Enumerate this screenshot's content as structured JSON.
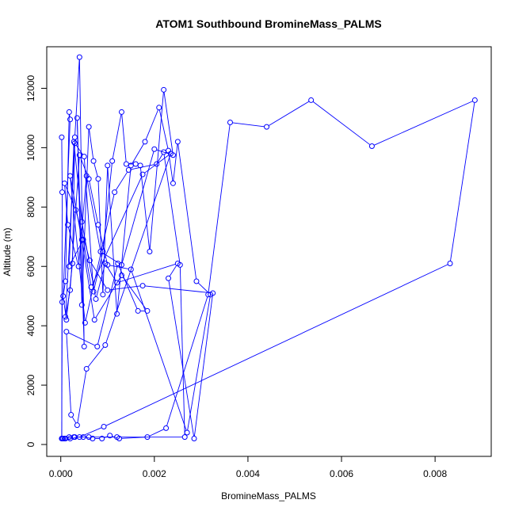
{
  "chart_data": {
    "type": "line",
    "title": "ATOM1 Southbound BromineMass_PALMS",
    "xlabel": "BromineMass_PALMS",
    "ylabel": "Altitude (m)",
    "xlim": [
      -0.0003,
      0.0092
    ],
    "ylim": [
      -400,
      13400
    ],
    "x_ticks": [
      "0.000",
      "0.002",
      "0.004",
      "0.006",
      "0.008"
    ],
    "x_tick_values": [
      0,
      0.002,
      0.004,
      0.006,
      0.008
    ],
    "y_ticks": [
      "0",
      "2000",
      "4000",
      "6000",
      "8000",
      "10000",
      "12000"
    ],
    "y_tick_values": [
      0,
      2000,
      4000,
      6000,
      8000,
      10000,
      12000
    ],
    "grid": false,
    "line_color": "#0000FF",
    "marker": "open-circle",
    "series": [
      {
        "x": [
          2e-05,
          3e-05,
          2e-05,
          3e-05,
          0.0001,
          0.00018,
          0.0002,
          5e-05,
          0.00012,
          0.00025,
          0.0003,
          0.0004,
          0.0005,
          0.00035,
          0.00045,
          0.0006,
          0.0007,
          0.0008,
          0.0009,
          0.001,
          0.0012,
          0.0015,
          0.0018,
          0.0021,
          0.0023,
          0.0024,
          0.0025,
          0.0029,
          0.0032,
          0.0027,
          0.0015,
          0.001,
          0.0008,
          0.0006,
          0.0004,
          0.0002,
          0.0001,
          0.0003,
          0.0005,
          0.0007,
          0.0009,
          0.0011,
          0.0013,
          0.0014,
          0.0016,
          0.0017,
          0.0019,
          0.0022,
          0.0024,
          0.002,
          0.0013,
          0.00085,
          0.00055,
          0.00038,
          0.00015,
          8e-05,
          0.00032,
          0.00062,
          0.001,
          0.00175,
          0.00325,
          0.00285,
          0.0023,
          0.0025,
          0.0012,
          0.00095,
          0.00075,
          0.00045,
          0.00028,
          0.00018,
          0.00048,
          0.00065,
          0.00175,
          0.00235,
          0.00095,
          0.00055,
          0.00035,
          0.00022,
          0.00012,
          0.00078,
          0.00122,
          0.00165,
          0.00185,
          0.0013,
          0.00072,
          0.00045,
          0.0002,
          0.00052,
          0.00115,
          0.00145,
          0.00205,
          0.0022,
          0.00255,
          0.00265,
          0.0012,
          0.0006,
          0.0003,
          0.0001,
          0.00018,
          0.00028,
          0.00048,
          0.00068,
          0.00088,
          0.00105,
          0.00125,
          0.00185,
          0.00225,
          0.00315,
          0.00362,
          0.0044,
          0.00535,
          0.00665,
          0.00885,
          0.00832,
          0.00092,
          0.0004,
          0.0002,
          8e-05,
          5e-05,
          3e-05
        ],
        "y": [
          10350,
          8500,
          200,
          4800,
          5500,
          11200,
          10950,
          5000,
          4200,
          6100,
          10350,
          13050,
          3300,
          11000,
          4700,
          10700,
          9550,
          8950,
          5050,
          9400,
          4400,
          9400,
          10200,
          11350,
          9900,
          8800,
          10200,
          5500,
          5050,
          400,
          5900,
          6050,
          7400,
          8950,
          9750,
          5200,
          4300,
          10150,
          9700,
          5150,
          6500,
          9550,
          11200,
          9450,
          9450,
          9400,
          6500,
          11950,
          9750,
          9950,
          6050,
          6500,
          9050,
          6000,
          7400,
          8800,
          7900,
          6200,
          5200,
          5350,
          5100,
          200,
          5600,
          6100,
          5450,
          6100,
          4900,
          7500,
          10200,
          6000,
          6900,
          5300,
          9100,
          9800,
          3350,
          2550,
          650,
          1000,
          3800,
          3300,
          6100,
          4500,
          4500,
          5700,
          4200,
          6900,
          9050,
          4100,
          8500,
          9250,
          9450,
          9850,
          6050,
          250,
          250,
          250,
          250,
          200,
          250,
          250,
          250,
          200,
          200,
          300,
          200,
          250,
          550,
          5050,
          10850,
          10700,
          11600,
          10050,
          11600,
          6100,
          600,
          250,
          200,
          200,
          200,
          200
        ]
      }
    ]
  }
}
